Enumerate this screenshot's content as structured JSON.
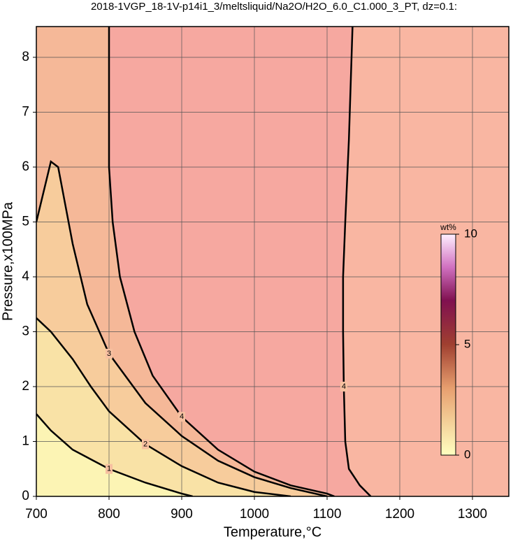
{
  "chart_data": {
    "type": "contour",
    "title": "2018-1VGP_18-1V-p14i1_3/meltsliquid/Na2O/H2O_6.0_C1.000_3_PT, dz=0.1:",
    "x_label": "Temperature,°C",
    "y_label": "Pressure,x100MPa",
    "xlim": [
      700,
      1350
    ],
    "ylim": [
      0,
      8.56
    ],
    "xticks": [
      700,
      800,
      900,
      1000,
      1100,
      1200,
      1300
    ],
    "yticks": [
      0,
      1,
      2,
      3,
      4,
      5,
      6,
      7,
      8
    ],
    "grid": true,
    "contours": [
      {
        "level": 1,
        "x": [
          700,
          720,
          750,
          800,
          850,
          900,
          915
        ],
        "y": [
          1.5,
          1.2,
          0.85,
          0.5,
          0.25,
          0.05,
          0
        ]
      },
      {
        "level": 2,
        "x": [
          700,
          720,
          750,
          775,
          800,
          850,
          900,
          950,
          1000,
          1050
        ],
        "y": [
          3.25,
          3.0,
          2.5,
          2.0,
          1.55,
          0.95,
          0.55,
          0.25,
          0.08,
          0
        ]
      },
      {
        "level": 3,
        "x": [
          700,
          720,
          730,
          740,
          750,
          770,
          800,
          850,
          900,
          950,
          1000,
          1050,
          1100
        ],
        "y": [
          5.0,
          6.1,
          6.0,
          5.3,
          4.6,
          3.5,
          2.6,
          1.7,
          1.1,
          0.65,
          0.35,
          0.15,
          0
        ]
      },
      {
        "level": 4,
        "x": [
          800,
          800,
          805,
          815,
          835,
          860,
          900,
          950,
          1000,
          1050,
          1100,
          1110
        ],
        "y": [
          8.56,
          6,
          5,
          4,
          3,
          2.2,
          1.45,
          0.85,
          0.45,
          0.2,
          0.05,
          0
        ]
      },
      {
        "level": 4,
        "x": [
          1135,
          1130,
          1125,
          1122,
          1122,
          1123,
          1125,
          1130,
          1145,
          1160
        ],
        "y": [
          8.56,
          6.5,
          5,
          4,
          3,
          2,
          1,
          0.5,
          0.2,
          0
        ]
      }
    ],
    "colorbar": {
      "label": "wt%",
      "lim": [
        0,
        10
      ],
      "ticks": [
        0,
        5,
        10
      ]
    }
  }
}
